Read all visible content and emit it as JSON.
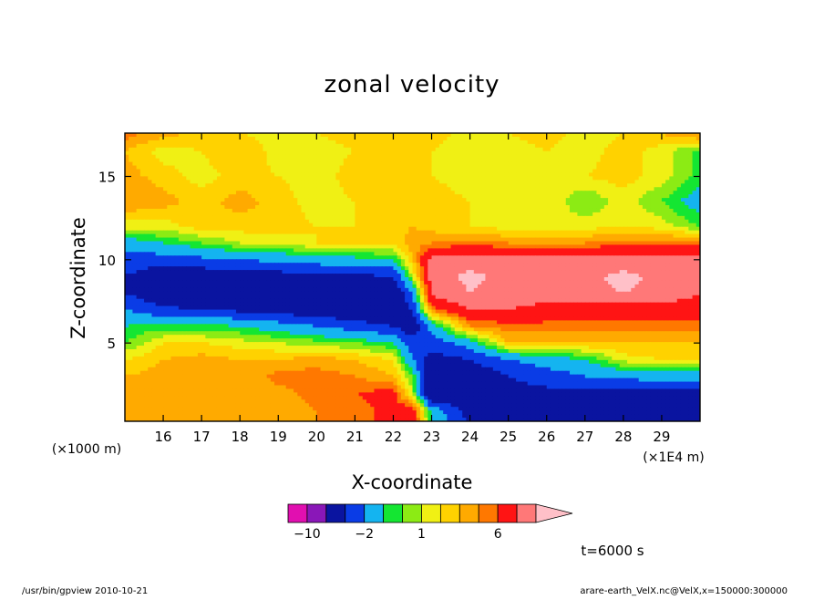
{
  "chart_data": {
    "type": "heatmap",
    "title": "zonal velocity",
    "xlabel": "X-coordinate",
    "ylabel": "Z-coordinate",
    "x_unit": "(×1E4 m)",
    "y_unit": "(×1000 m)",
    "xlim": [
      15.0,
      30.0
    ],
    "ylim": [
      0.3,
      17.6
    ],
    "x_ticks": [
      16,
      17,
      18,
      19,
      20,
      21,
      22,
      23,
      24,
      25,
      26,
      27,
      28,
      29
    ],
    "y_ticks": [
      5,
      10,
      15
    ],
    "levels": [
      -14,
      -10,
      -6,
      -4,
      -2,
      -1,
      0,
      1,
      2,
      3,
      4,
      6,
      8,
      10,
      12
    ],
    "colorbar": {
      "labels": [
        {
          "text": "−10",
          "value": -10
        },
        {
          "text": "−2",
          "value": -2
        },
        {
          "text": "1",
          "value": 1
        },
        {
          "text": "6",
          "value": 6
        }
      ],
      "colors": [
        "#e10fb0",
        "#8a17b8",
        "#0a14a0",
        "#0a3ce6",
        "#14b4f0",
        "#14e632",
        "#8ceb14",
        "#f0f014",
        "#ffd200",
        "#ffaa00",
        "#ff7800",
        "#ff1414",
        "#ff7878",
        "#ffc0c8"
      ]
    },
    "field": {
      "grid_x": [
        15.0,
        16.0,
        17.0,
        18.0,
        19.0,
        20.0,
        21.0,
        22.0,
        22.5,
        23.0,
        24.0,
        25.0,
        26.0,
        27.0,
        28.0,
        29.0,
        30.0
      ],
      "grid_z": [
        17.6,
        16.5,
        15.0,
        13.5,
        12.0,
        11.0,
        10.0,
        9.0,
        8.0,
        7.0,
        6.0,
        5.0,
        4.0,
        3.0,
        2.0,
        1.0,
        0.3
      ],
      "values": [
        [
          3.5,
          2.5,
          1.5,
          1.0,
          0.5,
          1.0,
          1.5,
          2.0,
          2.0,
          1.5,
          0.5,
          1.0,
          1.5,
          0.5,
          1.0,
          2.0,
          3.5
        ],
        [
          2.0,
          0.5,
          1.0,
          2.0,
          0.5,
          0.5,
          1.0,
          1.5,
          1.5,
          1.0,
          0.5,
          0.5,
          1.0,
          0.5,
          1.5,
          0.5,
          -1.5
        ],
        [
          2.5,
          1.5,
          0.5,
          1.5,
          1.0,
          0.5,
          1.5,
          2.0,
          2.0,
          1.0,
          0.5,
          1.0,
          0.5,
          1.0,
          1.5,
          0.5,
          -1.5
        ],
        [
          3.0,
          2.5,
          1.5,
          2.5,
          1.5,
          0.5,
          1.0,
          1.5,
          1.5,
          1.5,
          1.0,
          0.5,
          1.0,
          -1.0,
          0.5,
          -1.0,
          -3.0
        ],
        [
          0.5,
          0.5,
          1.5,
          1.5,
          1.5,
          1.0,
          1.0,
          1.5,
          2.0,
          1.5,
          1.0,
          0.5,
          0.5,
          0.5,
          1.0,
          0.5,
          -1.0
        ],
        [
          -3.0,
          -2.0,
          -1.0,
          0.0,
          0.5,
          1.0,
          1.0,
          1.5,
          2.5,
          3.0,
          3.5,
          3.0,
          3.0,
          3.0,
          3.5,
          3.5,
          3.5
        ],
        [
          -5.0,
          -5.0,
          -4.5,
          -4.0,
          -3.5,
          -3.0,
          -2.5,
          -2.0,
          2.0,
          6.5,
          7.0,
          7.0,
          7.0,
          7.0,
          7.0,
          7.0,
          7.0
        ],
        [
          -6.0,
          -7.5,
          -7.5,
          -7.5,
          -7.0,
          -6.5,
          -6.5,
          -6.0,
          0.0,
          7.0,
          8.5,
          7.5,
          7.0,
          7.5,
          8.5,
          7.5,
          6.5
        ],
        [
          -6.0,
          -8.0,
          -8.5,
          -8.0,
          -8.0,
          -8.0,
          -9.0,
          -8.0,
          -4.0,
          6.5,
          8.0,
          7.0,
          6.5,
          7.5,
          8.0,
          7.5,
          6.0
        ],
        [
          -4.0,
          -5.5,
          -6.0,
          -6.5,
          -7.0,
          -7.5,
          -8.0,
          -8.0,
          -6.0,
          3.5,
          6.0,
          6.0,
          5.5,
          5.0,
          5.0,
          5.0,
          5.0
        ],
        [
          -2.0,
          -1.5,
          -1.5,
          -2.0,
          -3.0,
          -4.0,
          -5.0,
          -6.0,
          -8.0,
          -3.0,
          3.0,
          3.5,
          3.5,
          3.5,
          3.5,
          3.5,
          3.5
        ],
        [
          -1.0,
          1.0,
          1.0,
          0.5,
          0.0,
          -0.5,
          -1.0,
          -2.0,
          -5.0,
          -5.0,
          -3.0,
          2.0,
          2.0,
          2.0,
          2.0,
          2.0,
          2.0
        ],
        [
          1.0,
          2.0,
          2.5,
          2.0,
          2.0,
          2.5,
          2.0,
          1.0,
          -4.0,
          -7.0,
          -6.0,
          -4.0,
          -3.0,
          -2.0,
          0.5,
          1.0,
          1.5
        ],
        [
          2.0,
          2.5,
          3.0,
          2.0,
          3.5,
          3.5,
          3.0,
          2.0,
          -1.0,
          -9.5,
          -8.0,
          -6.0,
          -5.0,
          -4.0,
          -3.5,
          -3.0,
          -3.0
        ],
        [
          2.0,
          2.0,
          2.0,
          2.0,
          2.5,
          3.5,
          4.0,
          4.5,
          0.0,
          -10.0,
          -8.0,
          -7.0,
          -6.5,
          -6.5,
          -6.5,
          -6.5,
          -6.5
        ],
        [
          2.0,
          2.0,
          2.0,
          2.5,
          2.5,
          3.0,
          3.5,
          4.5,
          5.0,
          -3.0,
          -7.0,
          -7.5,
          -7.5,
          -7.5,
          -7.0,
          -7.0,
          -7.0
        ],
        [
          2.0,
          2.0,
          2.5,
          2.5,
          2.5,
          3.0,
          3.5,
          4.5,
          5.5,
          -2.0,
          -6.5,
          -7.5,
          -7.5,
          -7.5,
          -7.0,
          -7.0,
          -7.0
        ]
      ]
    }
  },
  "labels": {
    "time": "t=6000 s",
    "footer_left": "/usr/bin/gpview   2010-10-21",
    "footer_right": "arare-earth_VelX.nc@VelX,x=150000:300000"
  }
}
